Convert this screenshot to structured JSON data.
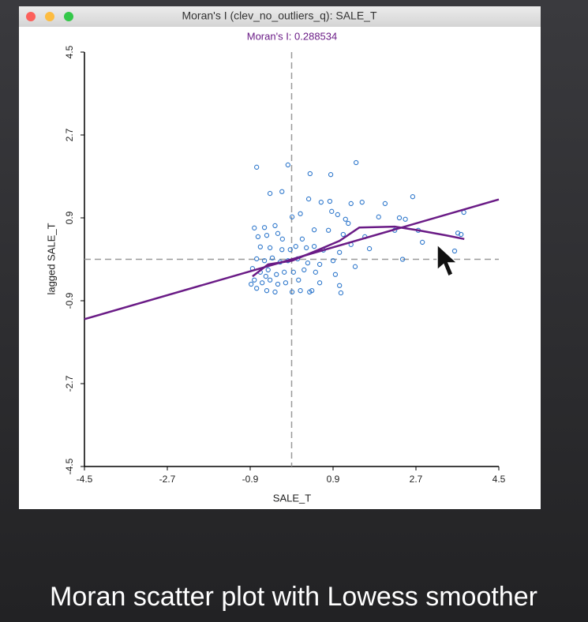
{
  "window_title": "Moran's I (clev_no_outliers_q): SALE_T",
  "caption": "Moran scatter plot with Lowess smoother",
  "chart_data": {
    "type": "scatter",
    "subtitle": "Moran's I: 0.288534",
    "xlabel": "SALE_T",
    "ylabel": "lagged SALE_T",
    "xlim": [
      -4.5,
      4.5
    ],
    "ylim": [
      -4.5,
      4.5
    ],
    "xticks": [
      -4.5,
      -2.7,
      -0.9,
      0.9,
      2.7,
      4.5
    ],
    "yticks": [
      -4.5,
      -2.7,
      -0.9,
      0.9,
      2.7,
      4.5
    ],
    "vline": 0,
    "hline": 0,
    "series": [
      {
        "color": "#2f78cc",
        "x": [
          -0.76,
          -0.08,
          0.4,
          0.85,
          1.4,
          -0.47,
          -0.21,
          0.37,
          0.64,
          0.83,
          1.29,
          1.53,
          2.03,
          2.63,
          3.74,
          0.01,
          0.19,
          0.87,
          1.0,
          1.17,
          1.23,
          1.89,
          2.34,
          2.47,
          2.24,
          2.75,
          2.84,
          3.61,
          3.68,
          3.54,
          2.41,
          -0.81,
          -0.59,
          -0.36,
          -0.54,
          -0.3,
          -0.2,
          0.23,
          0.49,
          0.8,
          1.12,
          1.59,
          -0.73,
          -0.68,
          -0.47,
          -0.21,
          -0.03,
          0.09,
          0.32,
          0.49,
          0.69,
          1.04,
          1.29,
          1.69,
          -0.76,
          -0.59,
          -0.42,
          -0.25,
          -0.08,
          0.13,
          0.35,
          0.61,
          0.9,
          1.38,
          -0.85,
          -0.68,
          -0.51,
          -0.33,
          -0.16,
          0.04,
          0.27,
          0.52,
          0.95,
          -0.81,
          -0.64,
          -0.47,
          -0.3,
          -0.13,
          0.15,
          0.61,
          1.04,
          -0.76,
          -0.54,
          -0.36,
          0.01,
          0.19,
          0.39,
          0.44,
          1.07,
          -0.88,
          -0.56
        ],
        "values": [
          2.0,
          2.05,
          1.86,
          1.84,
          2.1,
          1.43,
          1.47,
          1.31,
          1.24,
          1.26,
          1.21,
          1.24,
          1.21,
          1.36,
          1.02,
          0.92,
          0.99,
          1.04,
          0.97,
          0.87,
          0.78,
          0.92,
          0.9,
          0.87,
          0.63,
          0.63,
          0.37,
          0.57,
          0.54,
          0.18,
          0.0,
          0.68,
          0.69,
          0.73,
          0.52,
          0.56,
          0.44,
          0.44,
          0.64,
          0.63,
          0.54,
          0.49,
          0.49,
          0.27,
          0.25,
          0.21,
          0.21,
          0.28,
          0.25,
          0.28,
          0.2,
          0.15,
          0.32,
          0.23,
          0.01,
          -0.03,
          0.03,
          -0.06,
          -0.03,
          0.01,
          -0.08,
          -0.11,
          -0.03,
          -0.16,
          -0.2,
          -0.28,
          -0.23,
          -0.33,
          -0.28,
          -0.28,
          -0.23,
          -0.28,
          -0.33,
          -0.45,
          -0.51,
          -0.45,
          -0.54,
          -0.51,
          -0.45,
          -0.51,
          -0.57,
          -0.63,
          -0.68,
          -0.71,
          -0.71,
          -0.68,
          -0.71,
          -0.68,
          -0.73,
          -0.54,
          -0.37
        ]
      }
    ],
    "lines": [
      {
        "color": "#6a1b86",
        "x": [
          -4.5,
          4.5
        ],
        "values": [
          -1.3,
          1.3
        ]
      },
      {
        "color": "#6a1b86",
        "x": [
          -0.85,
          -0.51,
          0.01,
          0.52,
          1.04,
          1.47,
          2.24,
          2.75,
          3.35,
          3.75
        ],
        "values": [
          -0.37,
          -0.11,
          -0.03,
          0.18,
          0.4,
          0.69,
          0.71,
          0.63,
          0.52,
          0.44
        ]
      }
    ]
  }
}
